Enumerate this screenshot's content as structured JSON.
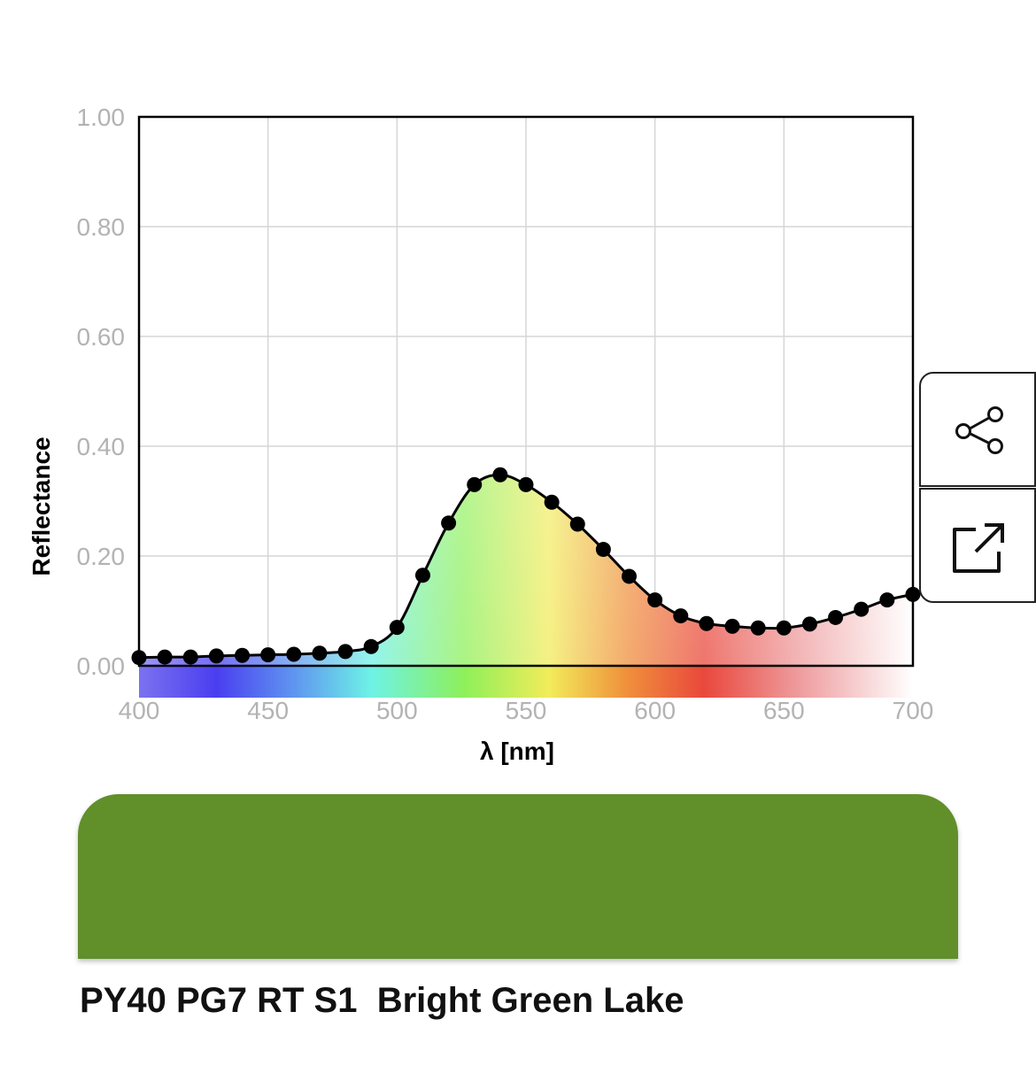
{
  "chart_data": {
    "type": "line",
    "xlabel": "λ [nm]",
    "ylabel": "Reflectance",
    "xlim": [
      400,
      700
    ],
    "ylim": [
      0,
      1
    ],
    "x_ticks": [
      "400",
      "450",
      "500",
      "550",
      "600",
      "650",
      "700"
    ],
    "y_ticks": [
      "0.00",
      "0.20",
      "0.40",
      "0.60",
      "0.80",
      "1.00"
    ],
    "grid": true,
    "markers": true,
    "series": [
      {
        "x": [
          400,
          410,
          420,
          430,
          440,
          450,
          460,
          470,
          480,
          490,
          500,
          510,
          520,
          530,
          540,
          550,
          560,
          570,
          580,
          590,
          600,
          610,
          620,
          630,
          640,
          650,
          660,
          670,
          680,
          690,
          700
        ],
        "values": [
          0.015,
          0.016,
          0.016,
          0.018,
          0.019,
          0.02,
          0.021,
          0.023,
          0.026,
          0.035,
          0.07,
          0.165,
          0.26,
          0.33,
          0.348,
          0.33,
          0.298,
          0.258,
          0.212,
          0.163,
          0.12,
          0.091,
          0.077,
          0.072,
          0.069,
          0.069,
          0.076,
          0.088,
          0.103,
          0.12,
          0.13
        ]
      }
    ]
  },
  "buttons": {
    "share_icon": "share-icon",
    "open_icon": "open-external-icon"
  },
  "swatch": {
    "color": "#618f2a"
  },
  "paint": {
    "name": "PY40 PG7 RT S1  Bright Green Lake"
  }
}
